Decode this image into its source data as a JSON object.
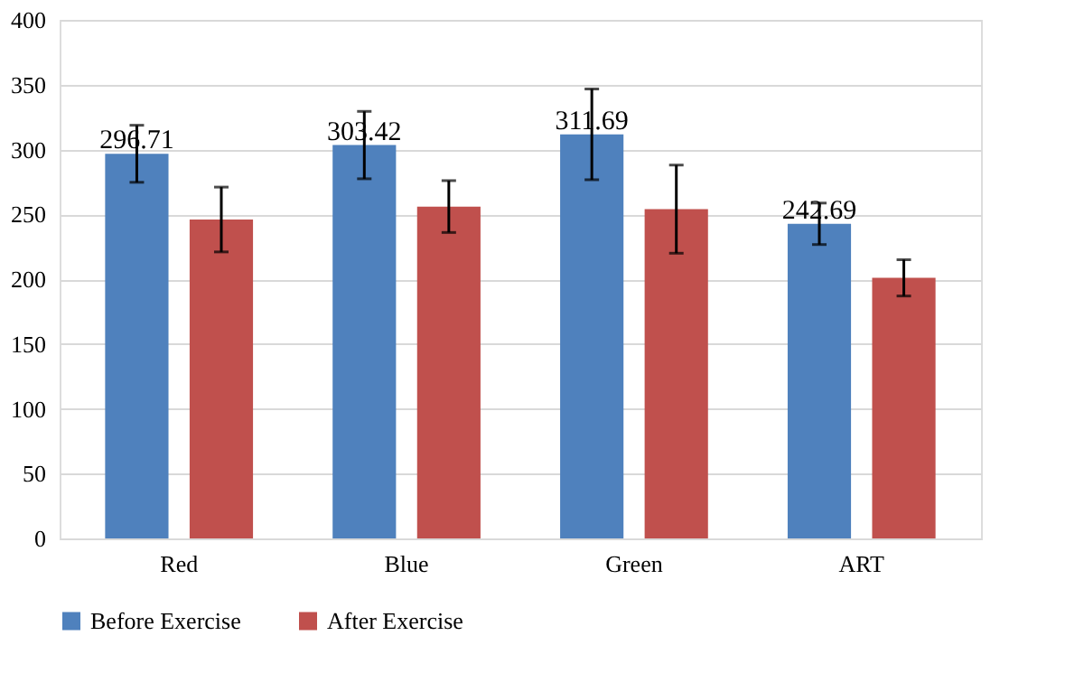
{
  "chart_data": {
    "type": "bar",
    "categories": [
      "Red",
      "Blue",
      "Green",
      "ART"
    ],
    "series": [
      {
        "name": "Before Exercise",
        "color": "#4f81bd",
        "values": [
          296.71,
          303.42,
          311.69,
          242.69
        ],
        "errors": [
          22,
          26,
          35,
          16
        ],
        "value_labels": [
          "296.71",
          "303.42",
          "311.69",
          "242.69"
        ]
      },
      {
        "name": "After Exercise",
        "color": "#c0504d",
        "values": [
          246,
          256,
          254,
          201
        ],
        "errors": [
          25,
          20,
          34,
          14
        ]
      }
    ],
    "ylim": [
      0,
      400
    ],
    "yticks": [
      0,
      50,
      100,
      150,
      200,
      250,
      300,
      350,
      400
    ],
    "grid": "y",
    "legend": "bottom"
  }
}
